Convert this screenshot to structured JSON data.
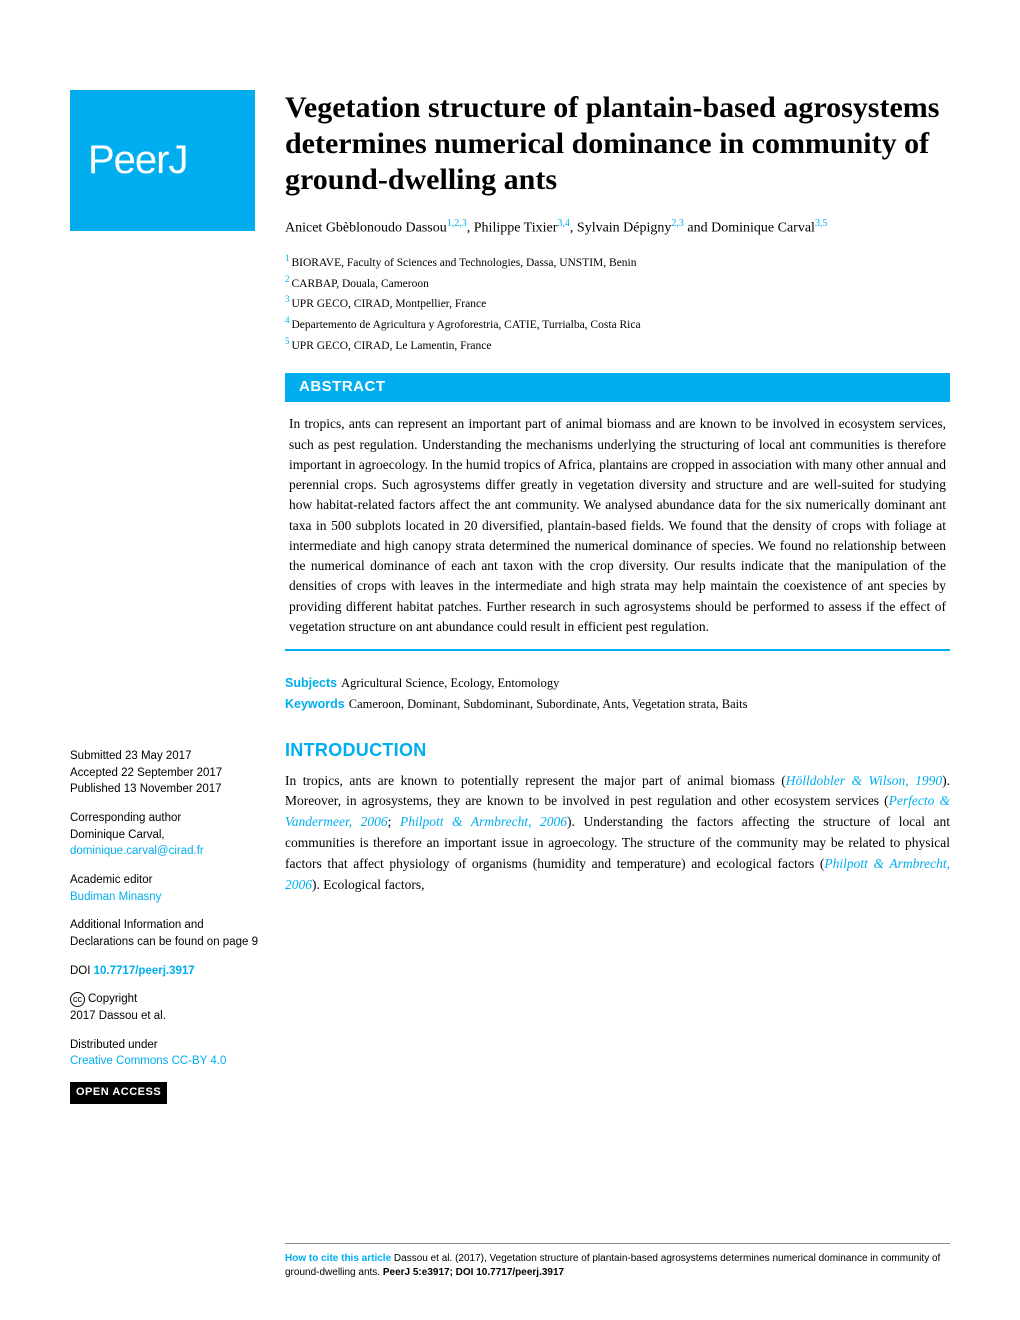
{
  "logo": {
    "text_main": "Peer",
    "text_j": "J",
    "bg_color": "#00aeef"
  },
  "title": "Vegetation structure of plantain-based agrosystems determines numerical dominance in community of ground-dwelling ants",
  "authors": [
    {
      "name": "Anicet Gbèblonoudo Dassou",
      "sup": "1,2,3"
    },
    {
      "name": "Philippe Tixier",
      "sup": "3,4"
    },
    {
      "name": "Sylvain Dépigny",
      "sup": "2,3"
    },
    {
      "name": "Dominique Carval",
      "sup": "3,5"
    }
  ],
  "author_sep_comma": ",  ",
  "author_sep_and": " and ",
  "affiliations": [
    {
      "n": "1",
      "text": "BIORAVE, Faculty of Sciences and Technologies, Dassa, UNSTIM, Benin"
    },
    {
      "n": "2",
      "text": "CARBAP, Douala, Cameroon"
    },
    {
      "n": "3",
      "text": "UPR GECO, CIRAD, Montpellier, France"
    },
    {
      "n": "4",
      "text": "Departemento de Agricultura y Agroforestria, CATIE, Turrialba, Costa Rica"
    },
    {
      "n": "5",
      "text": "UPR GECO, CIRAD, Le Lamentin, France"
    }
  ],
  "abstract": {
    "header": "ABSTRACT",
    "body": "In tropics, ants can represent an important part of animal biomass and are known to be involved in ecosystem services, such as pest regulation. Understanding the mechanisms underlying the structuring of local ant communities is therefore important in agroecology. In the humid tropics of Africa, plantains are cropped in association with many other annual and perennial crops. Such agrosystems differ greatly in vegetation diversity and structure and are well-suited for studying how habitat-related factors affect the ant community. We analysed abundance data for the six numerically dominant ant taxa in 500 subplots located in 20 diversified, plantain-based fields. We found that the density of crops with foliage at intermediate and high canopy strata determined the numerical dominance of species. We found no relationship between the numerical dominance of each ant taxon with the crop diversity. Our results indicate that the manipulation of the densities of crops with leaves in the intermediate and high strata may help maintain the coexistence of ant species by providing different habitat patches. Further research in such agrosystems should be performed to assess if the effect of vegetation structure on ant abundance could result in efficient pest regulation."
  },
  "subjects": {
    "label": "Subjects",
    "text": "Agricultural Science, Ecology, Entomology"
  },
  "keywords": {
    "label": "Keywords",
    "text": "Cameroon, Dominant, Subdominant, Subordinate, Ants, Vegetation strata, Baits"
  },
  "intro": {
    "header": "INTRODUCTION",
    "p1_a": "In tropics, ants are known to potentially represent the major part of animal biomass (",
    "c1": "Hölldobler & Wilson, 1990",
    "p1_b": "). Moreover, in agrosystems, they are known to be involved in pest regulation and other ecosystem services (",
    "c2": "Perfecto & Vandermeer, 2006",
    "sep": "; ",
    "c3": "Philpott & Armbrecht, 2006",
    "p1_c": "). Understanding the factors affecting the structure of local ant communities is therefore an important issue in agroecology. The structure of the community may be related to physical factors that affect physiology of organisms (humidity and temperature) and ecological factors (",
    "c4": "Philpott & Armbrecht, 2006",
    "p1_d": "). Ecological factors,"
  },
  "sidebar": {
    "submitted": {
      "label": "Submitted ",
      "value": "23 May 2017"
    },
    "accepted": {
      "label": "Accepted ",
      "value": "22 September 2017"
    },
    "published": {
      "label": "Published ",
      "value": "13 November 2017"
    },
    "corresponding": {
      "label": "Corresponding author",
      "name": "Dominique Carval,",
      "email": "dominique.carval@cirad.fr"
    },
    "editor": {
      "label": "Academic editor",
      "name": "Budiman Minasny"
    },
    "additional": "Additional Information and Declarations can be found on page 9",
    "doi": {
      "label": "DOI ",
      "value": "10.7717/peerj.3917"
    },
    "copyright": {
      "label": "Copyright",
      "text": "2017 Dassou et al."
    },
    "distributed": {
      "label": "Distributed under",
      "text": "Creative Commons CC-BY 4.0"
    },
    "open_access": "OPEN ACCESS"
  },
  "footer": {
    "how_label": "How to cite this article ",
    "text_a": "Dassou et al. (2017), Vegetation structure of plantain-based agrosystems determines numerical dominance in community of ground-dwelling ants. ",
    "journal": "PeerJ ",
    "cite": "5:e3917; DOI 10.7717/peerj.3917"
  },
  "colors": {
    "accent": "#00aeef",
    "text": "#000000",
    "bg": "#ffffff"
  }
}
